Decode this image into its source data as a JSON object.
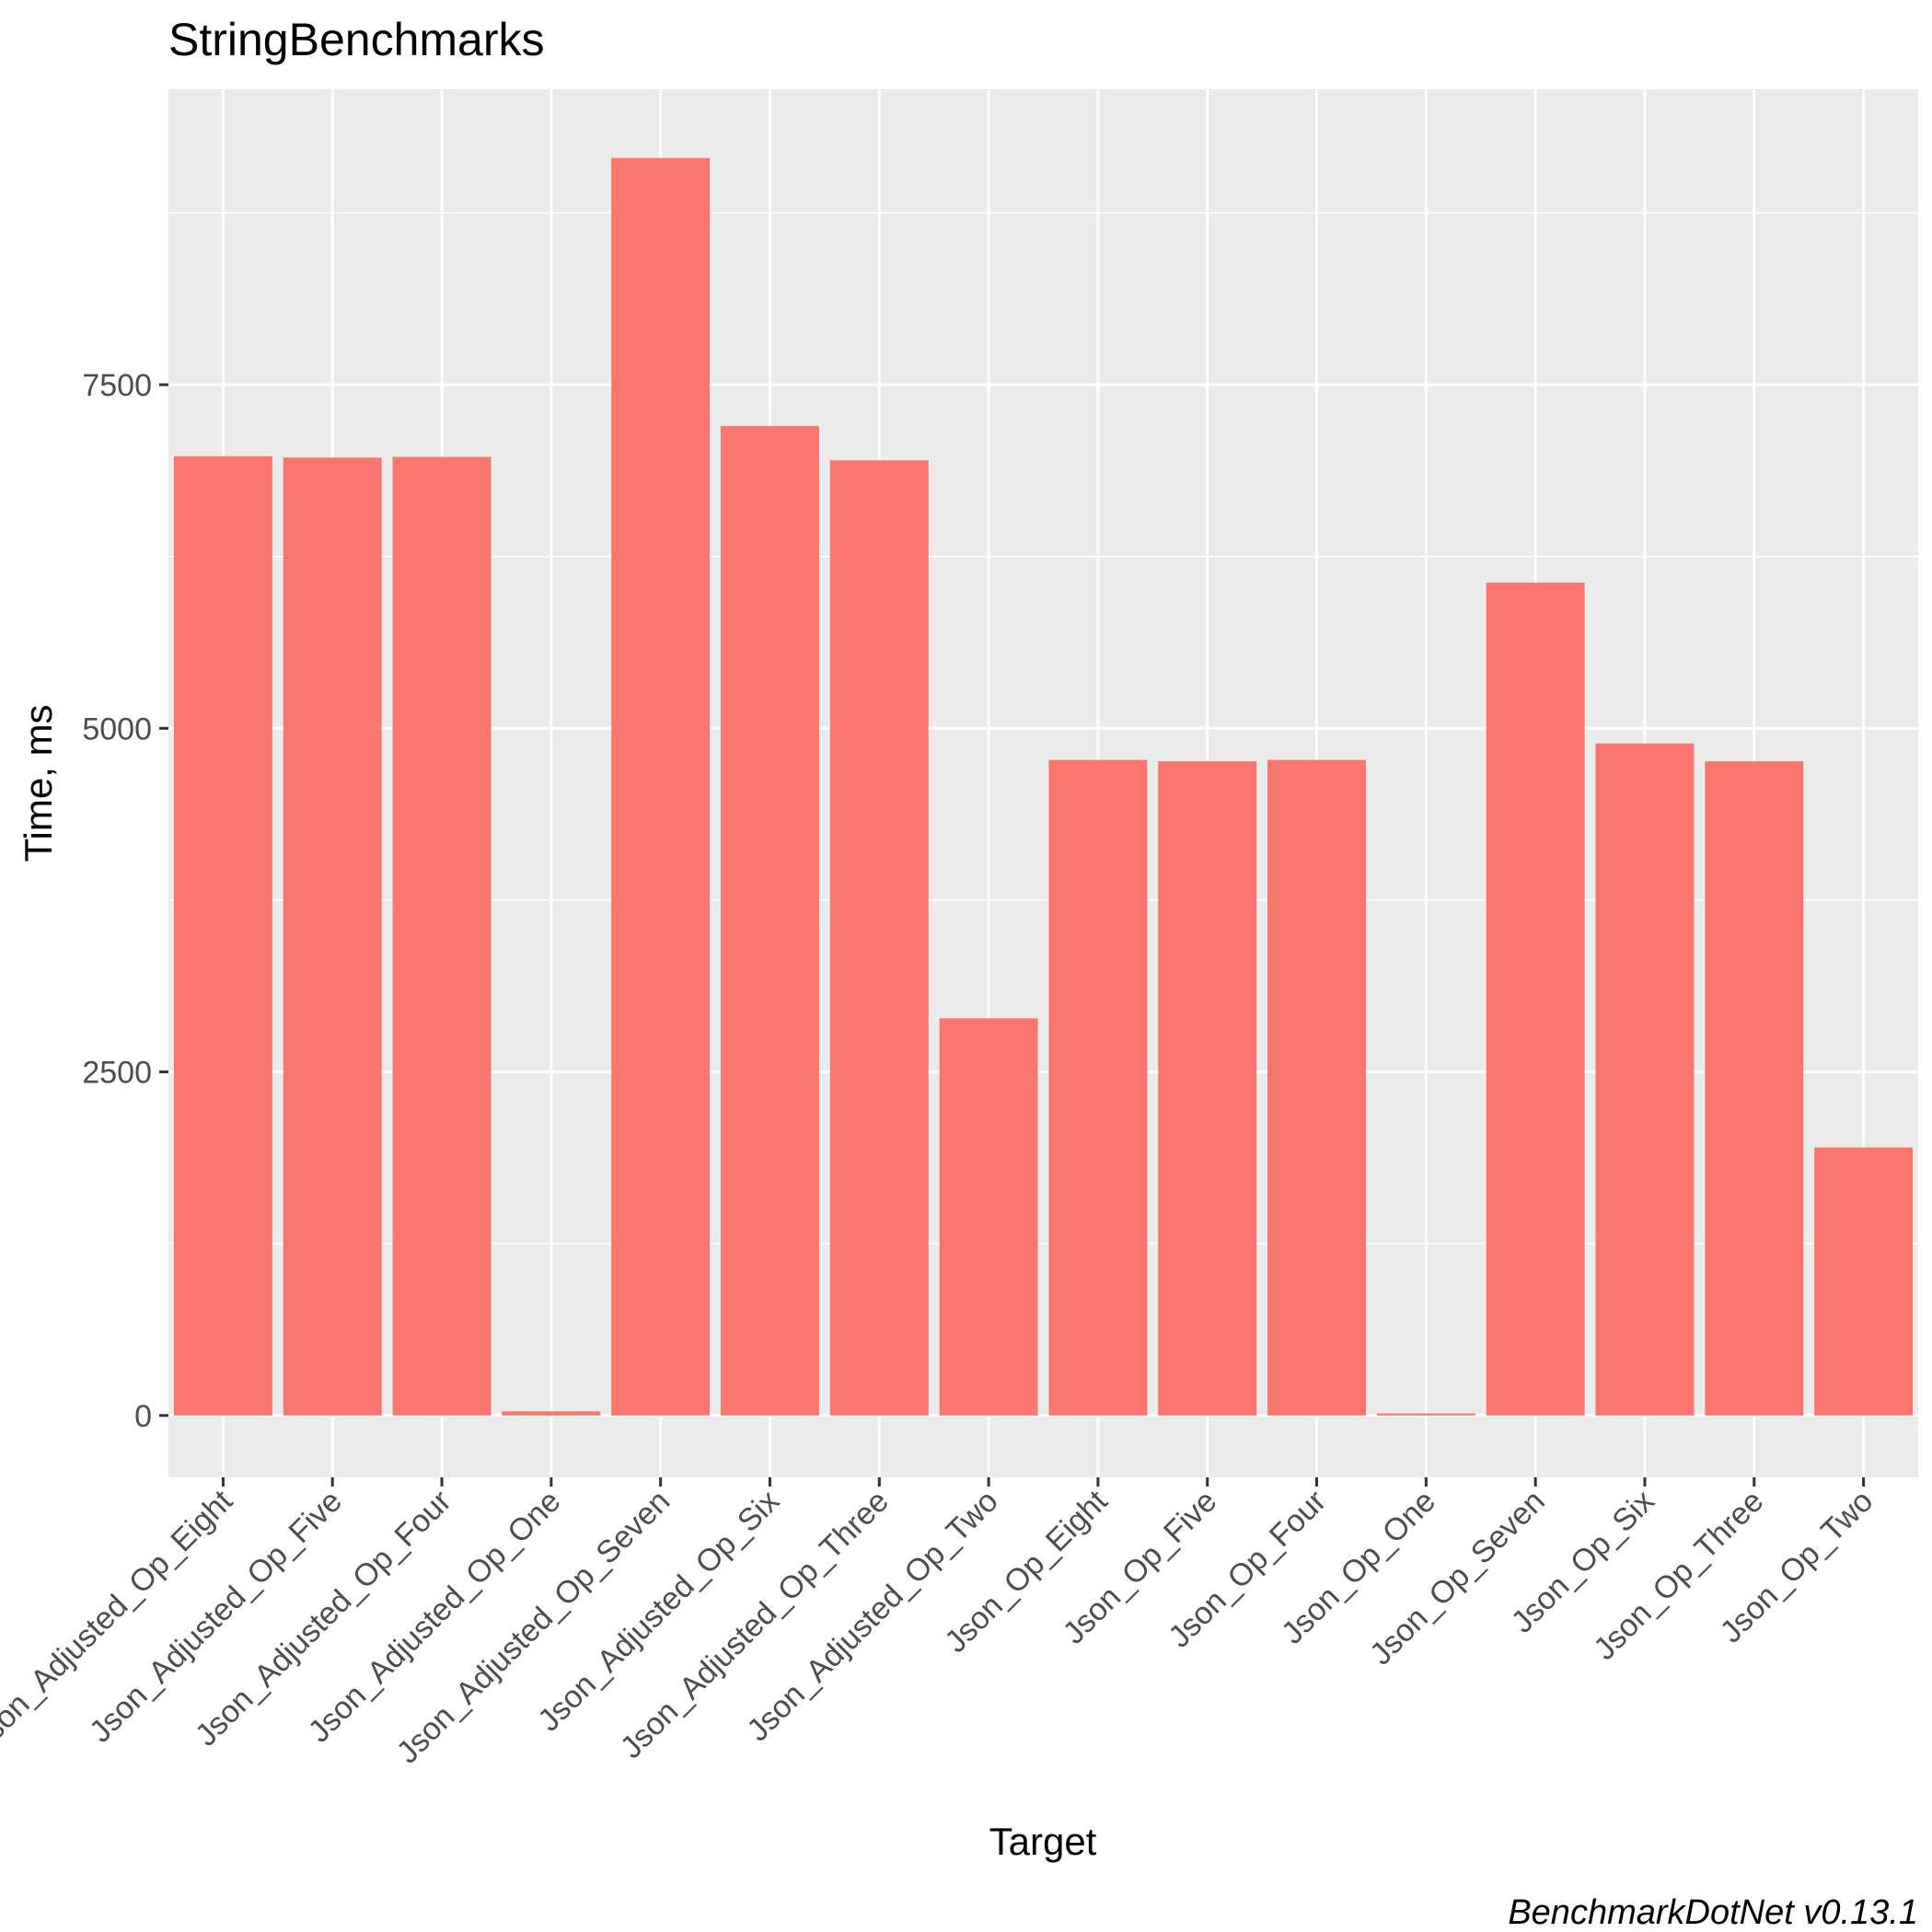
{
  "chart_data": {
    "type": "bar",
    "title": "StringBenchmarks",
    "xlabel": "Target",
    "ylabel": "Time, ms",
    "caption": "BenchmarkDotNet v0.13.1",
    "categories": [
      "Json_Adjusted_Op_Eight",
      "Json_Adjusted_Op_Five",
      "Json_Adjusted_Op_Four",
      "Json_Adjusted_Op_One",
      "Json_Adjusted_Op_Seven",
      "Json_Adjusted_Op_Six",
      "Json_Adjusted_Op_Three",
      "Json_Adjusted_Op_Two",
      "Json_Op_Eight",
      "Json_Op_Five",
      "Json_Op_Four",
      "Json_Op_One",
      "Json_Op_Seven",
      "Json_Op_Six",
      "Json_Op_Three",
      "Json_Op_Two"
    ],
    "values": [
      6980,
      6970,
      6975,
      30,
      9150,
      7200,
      6950,
      2890,
      4770,
      4760,
      4770,
      15,
      6060,
      4890,
      4760,
      1950
    ],
    "yticks": [
      0,
      2500,
      5000,
      7500
    ],
    "ylim": [
      -450,
      9650
    ],
    "bar_color": "#F8766D",
    "panel_background": "#EBEBEB",
    "grid_color": "#FFFFFF",
    "grid": true,
    "legend": "none"
  }
}
